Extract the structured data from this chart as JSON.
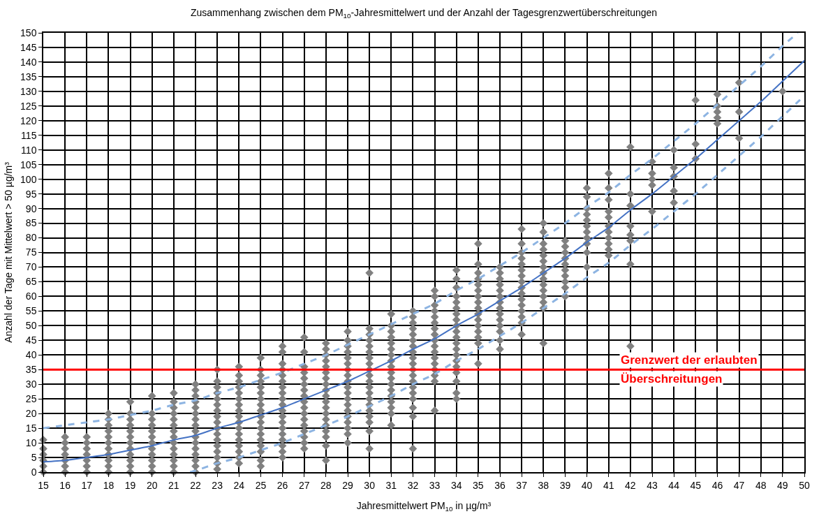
{
  "chart_data": {
    "type": "scatter",
    "title": "Zusammenhang zwischen dem PM$_{10}$-Jahresmittelwert und der Anzahl der Tagesgrenzwertüberschreitungen",
    "xlabel": "Jahresmittelwert PM$_{10}$ in µg/m³",
    "ylabel": "Anzahl der Tage mit Mittelwert > 50 µg/m³",
    "xlim": [
      15,
      50
    ],
    "ylim": [
      0,
      150
    ],
    "xticks": [
      15,
      16,
      17,
      18,
      19,
      20,
      21,
      22,
      23,
      24,
      25,
      26,
      27,
      28,
      29,
      30,
      31,
      32,
      33,
      34,
      35,
      36,
      37,
      38,
      39,
      40,
      41,
      42,
      43,
      44,
      45,
      46,
      47,
      48,
      49,
      50
    ],
    "yticks": [
      0,
      5,
      10,
      15,
      20,
      25,
      30,
      35,
      40,
      45,
      50,
      55,
      60,
      65,
      70,
      75,
      80,
      85,
      90,
      95,
      100,
      105,
      110,
      115,
      120,
      125,
      130,
      135,
      140,
      145,
      150
    ],
    "grid": true,
    "series": [
      {
        "color": "#808080",
        "marker": "diamond",
        "x": [
          15,
          15,
          15,
          15,
          15,
          15,
          16,
          16,
          16,
          16,
          16,
          16,
          16,
          17,
          17,
          17,
          17,
          17,
          17,
          17,
          18,
          18,
          18,
          18,
          18,
          18,
          18,
          18,
          18,
          18,
          18,
          19,
          19,
          19,
          19,
          19,
          19,
          19,
          19,
          19,
          19,
          19,
          19,
          20,
          20,
          20,
          20,
          20,
          20,
          20,
          20,
          20,
          20,
          20,
          20,
          21,
          21,
          21,
          21,
          21,
          21,
          21,
          21,
          21,
          21,
          21,
          21,
          21,
          21,
          22,
          22,
          22,
          22,
          22,
          22,
          22,
          22,
          22,
          22,
          22,
          22,
          22,
          22,
          22,
          22,
          23,
          23,
          23,
          23,
          23,
          23,
          23,
          23,
          23,
          23,
          23,
          23,
          23,
          23,
          23,
          23,
          23,
          24,
          24,
          24,
          24,
          24,
          24,
          24,
          24,
          24,
          24,
          24,
          24,
          24,
          24,
          24,
          24,
          24,
          25,
          25,
          25,
          25,
          25,
          25,
          25,
          25,
          25,
          25,
          25,
          25,
          25,
          25,
          25,
          25,
          25,
          25,
          26,
          26,
          26,
          26,
          26,
          26,
          26,
          26,
          26,
          26,
          26,
          26,
          26,
          26,
          26,
          26,
          26,
          26,
          26,
          27,
          27,
          27,
          27,
          27,
          27,
          27,
          27,
          27,
          27,
          27,
          27,
          27,
          27,
          27,
          27,
          27,
          28,
          28,
          28,
          28,
          28,
          28,
          28,
          28,
          28,
          28,
          28,
          28,
          28,
          28,
          28,
          28,
          28,
          28,
          28,
          29,
          29,
          29,
          29,
          29,
          29,
          29,
          29,
          29,
          29,
          29,
          29,
          29,
          29,
          29,
          29,
          29,
          29,
          29,
          30,
          30,
          30,
          30,
          30,
          30,
          30,
          30,
          30,
          30,
          30,
          30,
          30,
          30,
          30,
          30,
          30,
          30,
          30,
          30,
          31,
          31,
          31,
          31,
          31,
          31,
          31,
          31,
          31,
          31,
          31,
          31,
          31,
          31,
          31,
          31,
          31,
          31,
          32,
          32,
          32,
          32,
          32,
          32,
          32,
          32,
          32,
          32,
          32,
          32,
          32,
          32,
          32,
          32,
          32,
          32,
          32,
          33,
          33,
          33,
          33,
          33,
          33,
          33,
          33,
          33,
          33,
          33,
          33,
          33,
          33,
          33,
          33,
          33,
          34,
          34,
          34,
          34,
          34,
          34,
          34,
          34,
          34,
          34,
          34,
          34,
          34,
          34,
          34,
          34,
          34,
          34,
          34,
          34,
          35,
          35,
          35,
          35,
          35,
          35,
          35,
          35,
          35,
          35,
          35,
          35,
          35,
          35,
          35,
          35,
          36,
          36,
          36,
          36,
          36,
          36,
          36,
          36,
          36,
          36,
          36,
          36,
          36,
          36,
          37,
          37,
          37,
          37,
          37,
          37,
          37,
          37,
          37,
          37,
          37,
          37,
          37,
          37,
          37,
          37,
          38,
          38,
          38,
          38,
          38,
          38,
          38,
          38,
          38,
          38,
          38,
          38,
          38,
          38,
          38,
          39,
          39,
          39,
          39,
          39,
          39,
          39,
          39,
          39,
          39,
          40,
          40,
          40,
          40,
          40,
          40,
          40,
          40,
          40,
          40,
          40,
          41,
          41,
          41,
          41,
          41,
          41,
          41,
          41,
          41,
          41,
          41,
          42,
          42,
          42,
          42,
          42,
          42,
          42,
          42,
          43,
          43,
          43,
          43,
          43,
          44,
          44,
          44,
          44,
          44,
          45,
          45,
          45,
          46,
          46,
          46,
          46,
          46,
          47,
          47,
          47,
          49
        ],
        "values": [
          0,
          2,
          4,
          6,
          8,
          11,
          0,
          2,
          4,
          6,
          8,
          10,
          12,
          0,
          2,
          4,
          6,
          8,
          10,
          12,
          0,
          2,
          4,
          6,
          8,
          10,
          12,
          14,
          16,
          18,
          20,
          0,
          2,
          4,
          6,
          8,
          10,
          12,
          14,
          16,
          18,
          20,
          24,
          0,
          2,
          4,
          6,
          8,
          10,
          12,
          14,
          16,
          18,
          20,
          26,
          0,
          2,
          4,
          6,
          8,
          10,
          12,
          14,
          16,
          18,
          20,
          22,
          24,
          27,
          0,
          2,
          4,
          6,
          8,
          10,
          12,
          14,
          16,
          18,
          20,
          22,
          24,
          26,
          28,
          30,
          1,
          3,
          5,
          7,
          9,
          11,
          13,
          15,
          17,
          19,
          21,
          23,
          25,
          27,
          29,
          31,
          35,
          3,
          5,
          7,
          9,
          11,
          13,
          15,
          17,
          19,
          21,
          23,
          25,
          27,
          29,
          31,
          33,
          36,
          2,
          4,
          7,
          9,
          11,
          13,
          15,
          17,
          19,
          21,
          23,
          25,
          27,
          29,
          31,
          33,
          35,
          39,
          5,
          7,
          9,
          11,
          13,
          15,
          17,
          19,
          21,
          23,
          25,
          27,
          29,
          31,
          33,
          35,
          37,
          41,
          43,
          8,
          10,
          12,
          14,
          16,
          18,
          20,
          22,
          24,
          26,
          28,
          30,
          32,
          34,
          36,
          41,
          46,
          4,
          9,
          12,
          14,
          16,
          18,
          20,
          22,
          24,
          26,
          28,
          30,
          32,
          34,
          36,
          38,
          40,
          42,
          44,
          10,
          13,
          15,
          17,
          19,
          21,
          23,
          25,
          27,
          29,
          31,
          33,
          35,
          37,
          39,
          41,
          43,
          45,
          48,
          8,
          14,
          17,
          19,
          21,
          23,
          25,
          27,
          29,
          31,
          33,
          35,
          37,
          39,
          41,
          43,
          45,
          47,
          49,
          68,
          16,
          20,
          22,
          24,
          26,
          28,
          30,
          32,
          34,
          36,
          38,
          40,
          42,
          44,
          46,
          48,
          50,
          54,
          8,
          19,
          22,
          25,
          27,
          29,
          31,
          33,
          35,
          37,
          39,
          41,
          43,
          45,
          47,
          49,
          51,
          53,
          55,
          21,
          31,
          33,
          35,
          37,
          39,
          41,
          43,
          45,
          47,
          49,
          51,
          53,
          55,
          57,
          60,
          62,
          25,
          27,
          31,
          34,
          36,
          38,
          40,
          42,
          44,
          46,
          48,
          50,
          52,
          54,
          56,
          58,
          60,
          63,
          66,
          69,
          37,
          44,
          46,
          48,
          50,
          52,
          54,
          56,
          58,
          60,
          62,
          64,
          66,
          68,
          71,
          78,
          42,
          45,
          48,
          50,
          52,
          54,
          56,
          58,
          60,
          62,
          64,
          66,
          68,
          70,
          47,
          51,
          53,
          55,
          57,
          59,
          61,
          63,
          65,
          67,
          69,
          71,
          73,
          75,
          78,
          83,
          44,
          56,
          58,
          60,
          62,
          64,
          66,
          68,
          70,
          72,
          74,
          76,
          78,
          82,
          85,
          60,
          63,
          65,
          67,
          69,
          71,
          73,
          75,
          77,
          79,
          70,
          75,
          78,
          80,
          82,
          84,
          86,
          88,
          90,
          94,
          97,
          74,
          76,
          78,
          80,
          82,
          84,
          87,
          89,
          93,
          97,
          102,
          43,
          71,
          79,
          81,
          84,
          91,
          95,
          111,
          89,
          98,
          100,
          102,
          106,
          92,
          96,
          101,
          104,
          110,
          107,
          112,
          127,
          119,
          121,
          123,
          125,
          129,
          114,
          123,
          133,
          130
        ]
      },
      {
        "type": "line",
        "color": "#4472c4",
        "line_style": "solid",
        "x": [
          15,
          16,
          17,
          18,
          19,
          20,
          21,
          22,
          23,
          24,
          25,
          26,
          27,
          28,
          29,
          30,
          31,
          32,
          33,
          34,
          35,
          36,
          37,
          38,
          39,
          40,
          41,
          42,
          43,
          44,
          45,
          46,
          47,
          48,
          49,
          50
        ],
        "values": [
          3.5,
          4,
          5,
          6,
          7.5,
          9,
          11,
          12.5,
          15,
          17,
          19.5,
          22,
          25,
          28,
          31,
          34.5,
          38,
          42,
          45.5,
          50,
          54,
          58.5,
          63,
          68,
          73,
          78.5,
          83.5,
          89.5,
          95,
          101,
          107,
          113.5,
          120,
          126.5,
          133.5,
          140.5
        ]
      },
      {
        "type": "line",
        "color": "#8db4e2",
        "line_style": "dashed",
        "x": [
          15,
          16,
          17,
          18,
          19,
          20,
          21,
          22,
          23,
          24,
          25,
          26,
          27,
          28,
          29,
          30,
          31,
          32,
          33,
          34,
          35,
          36,
          37,
          38,
          39,
          40,
          41,
          42,
          43,
          44,
          45,
          46,
          47,
          48,
          49,
          49.7
        ],
        "values": [
          15,
          16,
          17,
          18,
          19.5,
          21,
          23,
          24.5,
          27,
          29,
          31.5,
          34,
          37,
          40,
          43.5,
          47,
          50.5,
          54,
          57.5,
          62,
          66,
          70.5,
          75,
          80,
          85,
          90.5,
          95.5,
          101.5,
          107,
          113,
          119,
          125.5,
          132,
          138.5,
          145.5,
          150
        ]
      },
      {
        "type": "line",
        "color": "#8db4e2",
        "line_style": "dashed",
        "x": [
          21.75,
          22,
          23,
          24,
          25,
          26,
          27,
          28,
          29,
          30,
          31,
          32,
          33,
          34,
          35,
          36,
          37,
          38,
          39,
          40,
          41,
          42,
          43,
          44,
          45,
          46,
          47,
          48,
          49,
          50
        ],
        "values": [
          0,
          0.5,
          3,
          5,
          7.5,
          10,
          13,
          16,
          19,
          22.5,
          26,
          30,
          33.5,
          38,
          42,
          46.5,
          51,
          56,
          61,
          66.5,
          71.5,
          77.5,
          83,
          89,
          95,
          101.5,
          108,
          114.5,
          121.5,
          128.5
        ]
      }
    ],
    "ref_lines": [
      {
        "axis": "y",
        "value": 35,
        "label": "Grenzwert der erlaubten\nÜberschreitungen",
        "color": "#ff0000",
        "line_style": "solid"
      }
    ]
  }
}
